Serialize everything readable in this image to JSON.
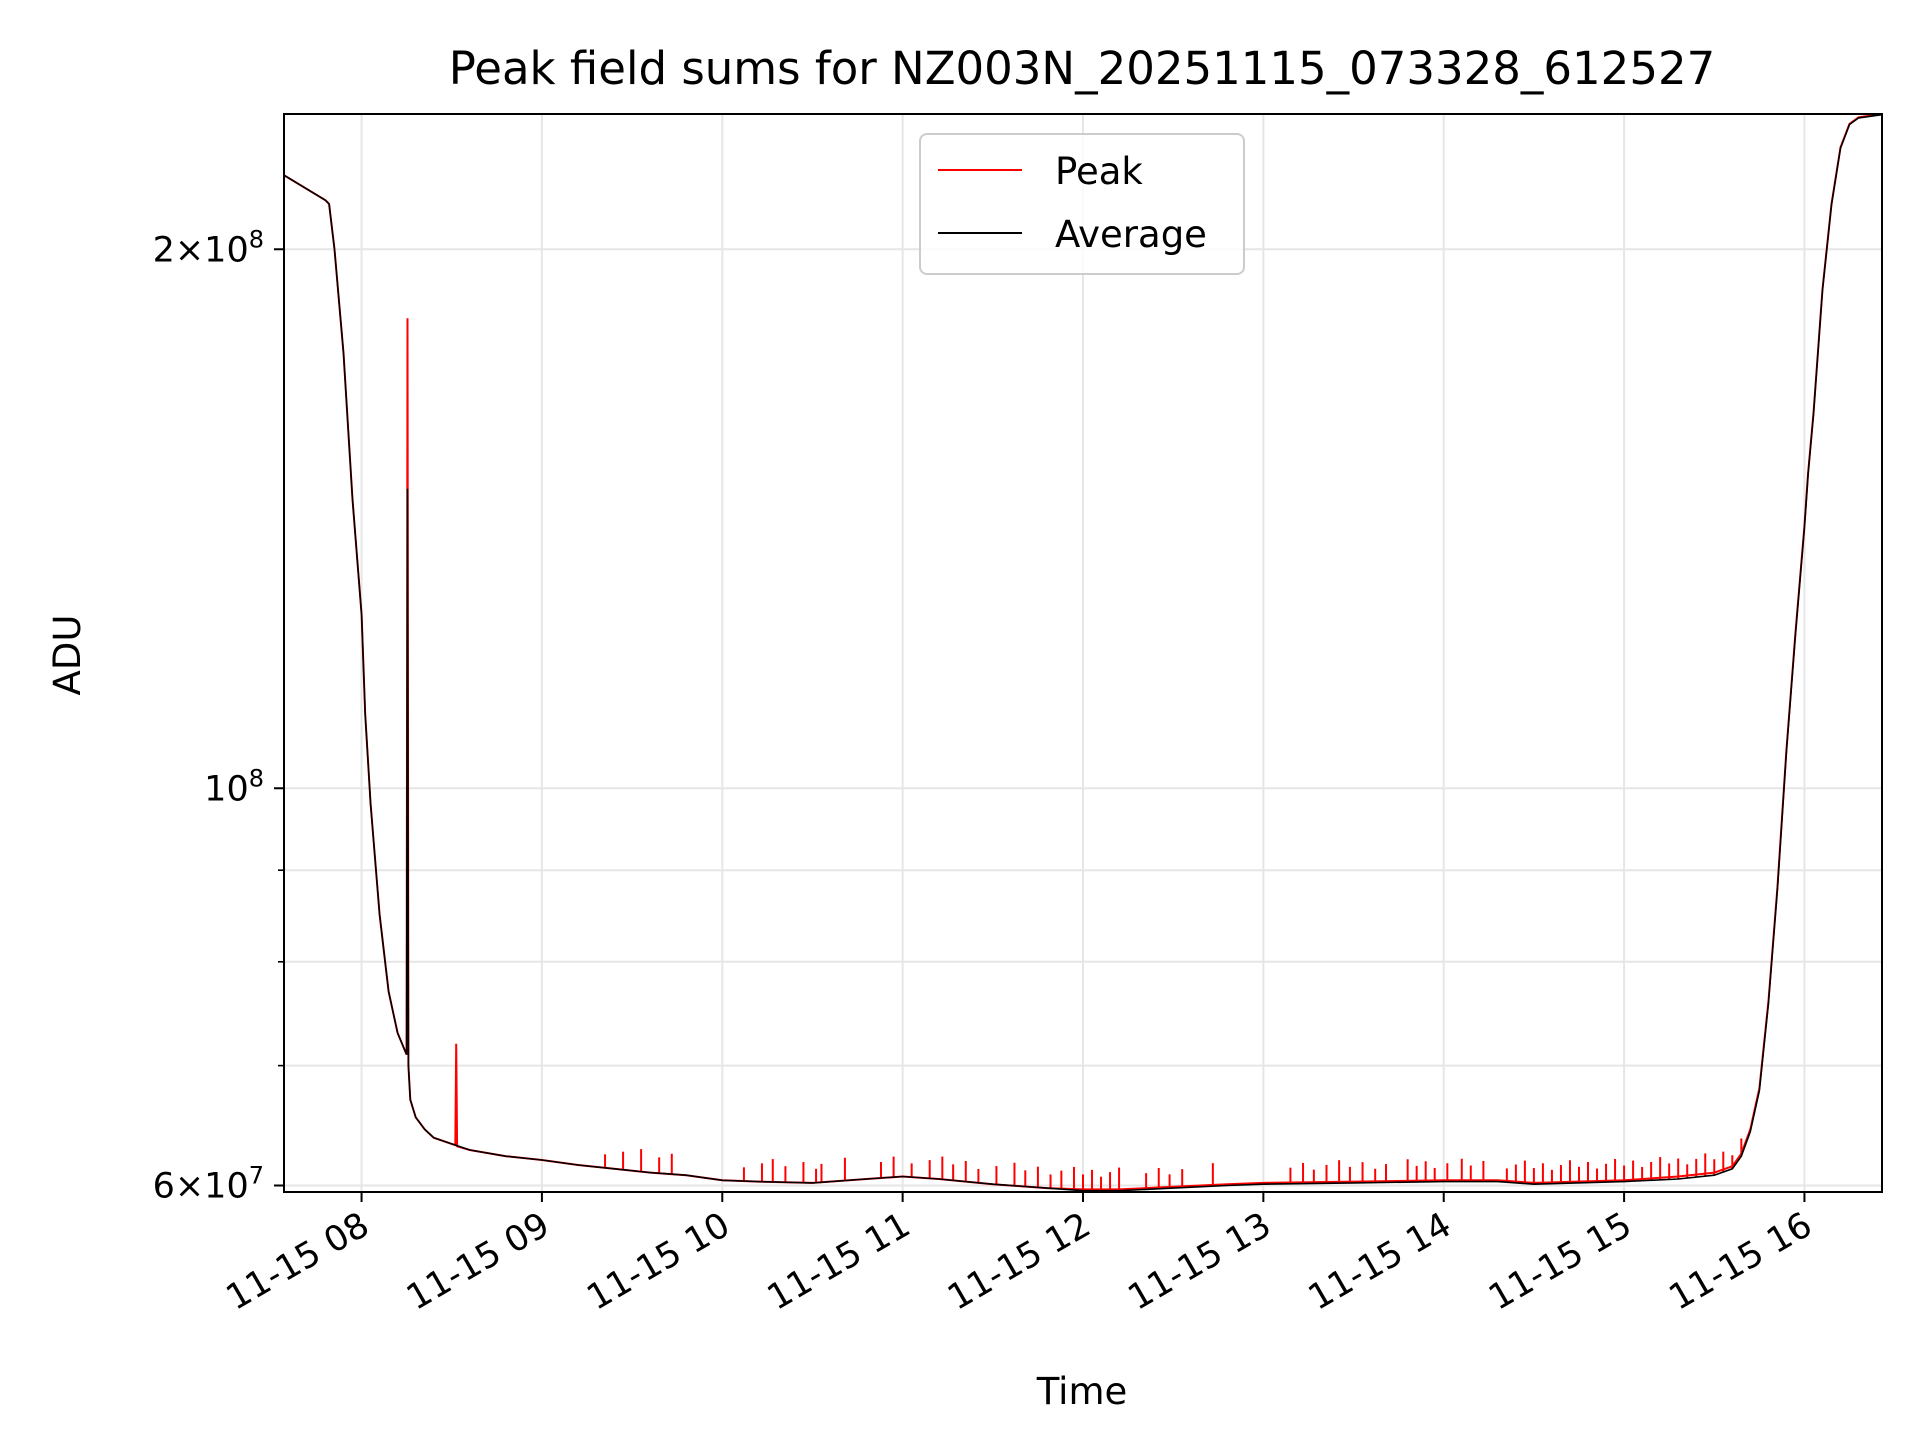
{
  "chart_data": {
    "type": "line",
    "title": "Peak field sums for NZ003N_20251115_073328_612527",
    "xlabel": "Time",
    "ylabel": "ADU",
    "yscale": "log",
    "grid": true,
    "legend_position": "top-center",
    "xlim": [
      7.57,
      16.43
    ],
    "ylim": [
      59500000,
      238000000
    ],
    "x_unit": "hours on 2025-11-15",
    "x_ticks": [
      8,
      9,
      10,
      11,
      12,
      13,
      14,
      15,
      16
    ],
    "x_tick_labels": [
      "11-15 08",
      "11-15 09",
      "11-15 10",
      "11-15 11",
      "11-15 12",
      "11-15 13",
      "11-15 14",
      "11-15 15",
      "11-15 16"
    ],
    "y_major_ticks": [
      60000000,
      100000000,
      200000000
    ],
    "y_major_tick_labels": [
      {
        "mantissa": "6",
        "exponent": "7"
      },
      {
        "mantissa": "",
        "exponent": "8"
      },
      {
        "mantissa": "2",
        "exponent": "8"
      }
    ],
    "y_minor_ticks": [
      70000000,
      80000000,
      90000000
    ],
    "series": [
      {
        "name": "Peak",
        "color": "#ff0000",
        "x": [
          7.57,
          7.8,
          7.82,
          7.85,
          7.9,
          7.95,
          8.0,
          8.02,
          8.05,
          8.1,
          8.15,
          8.2,
          8.25,
          8.255,
          8.26,
          8.27,
          8.3,
          8.35,
          8.4,
          8.5,
          8.52,
          8.525,
          8.53,
          8.6,
          8.8,
          9.0,
          9.2,
          9.4,
          9.6,
          9.8,
          10.0,
          10.2,
          10.5,
          10.8,
          11.0,
          11.2,
          11.5,
          11.8,
          12.0,
          12.2,
          12.5,
          12.8,
          13.0,
          13.5,
          14.0,
          14.3,
          14.5,
          15.0,
          15.3,
          15.5,
          15.6,
          15.65,
          15.7,
          15.75,
          15.8,
          15.85,
          15.9,
          15.95,
          16.0,
          16.02,
          16.05,
          16.1,
          16.15,
          16.2,
          16.25,
          16.3,
          16.43
        ],
        "y": [
          220000000,
          213000000,
          212000000,
          200000000,
          175000000,
          145000000,
          125000000,
          110000000,
          98000000,
          85000000,
          77000000,
          73000000,
          71000000,
          183000000,
          70000000,
          67000000,
          65500000,
          64500000,
          63800000,
          63300000,
          63200000,
          72000000,
          63100000,
          62800000,
          62300000,
          62000000,
          61600000,
          61300000,
          61000000,
          60800000,
          60400000,
          60300000,
          60200000,
          60500000,
          60700000,
          60500000,
          60100000,
          59800000,
          59700000,
          59700000,
          59900000,
          60100000,
          60200000,
          60300000,
          60400000,
          60400000,
          60200000,
          60400000,
          60700000,
          61000000,
          61500000,
          62500000,
          64500000,
          68000000,
          76000000,
          88000000,
          105000000,
          122000000,
          140000000,
          150000000,
          162000000,
          190000000,
          212000000,
          228000000,
          235000000,
          237000000,
          238000000
        ]
      },
      {
        "name": "Average",
        "color": "#000000",
        "x": [
          7.57,
          7.8,
          7.82,
          7.85,
          7.9,
          7.95,
          8.0,
          8.02,
          8.05,
          8.1,
          8.15,
          8.2,
          8.25,
          8.255,
          8.26,
          8.27,
          8.3,
          8.35,
          8.4,
          8.5,
          8.6,
          8.8,
          9.0,
          9.2,
          9.4,
          9.6,
          9.8,
          10.0,
          10.2,
          10.5,
          10.8,
          11.0,
          11.2,
          11.5,
          11.8,
          12.0,
          12.2,
          12.5,
          12.8,
          13.0,
          13.5,
          14.0,
          14.3,
          14.5,
          15.0,
          15.3,
          15.5,
          15.6,
          15.65,
          15.7,
          15.75,
          15.8,
          15.85,
          15.9,
          15.95,
          16.0,
          16.02,
          16.05,
          16.1,
          16.15,
          16.2,
          16.25,
          16.3,
          16.43
        ],
        "y": [
          220000000,
          213000000,
          212000000,
          200000000,
          175000000,
          145000000,
          125000000,
          110000000,
          98000000,
          85000000,
          77000000,
          73000000,
          71000000,
          147000000,
          70000000,
          67000000,
          65500000,
          64500000,
          63800000,
          63300000,
          62800000,
          62300000,
          62000000,
          61600000,
          61300000,
          61000000,
          60800000,
          60400000,
          60300000,
          60200000,
          60500000,
          60700000,
          60500000,
          60100000,
          59800000,
          59600000,
          59600000,
          59800000,
          60000000,
          60100000,
          60200000,
          60300000,
          60300000,
          60100000,
          60300000,
          60500000,
          60800000,
          61300000,
          62300000,
          64300000,
          67800000,
          75800000,
          87800000,
          104800000,
          121800000,
          139800000,
          149800000,
          161800000,
          189800000,
          211800000,
          227800000,
          234800000,
          236800000,
          237800000
        ]
      }
    ],
    "peak_spike_times": [
      9.35,
      9.45,
      9.55,
      9.65,
      9.72,
      10.12,
      10.22,
      10.28,
      10.35,
      10.45,
      10.52,
      10.55,
      10.68,
      10.88,
      10.95,
      11.05,
      11.15,
      11.22,
      11.28,
      11.35,
      11.42,
      11.52,
      11.62,
      11.68,
      11.75,
      11.82,
      11.88,
      11.95,
      12.0,
      12.05,
      12.1,
      12.15,
      12.2,
      12.35,
      12.42,
      12.48,
      12.55,
      12.72,
      13.15,
      13.22,
      13.28,
      13.35,
      13.42,
      13.48,
      13.55,
      13.62,
      13.68,
      13.8,
      13.85,
      13.9,
      13.95,
      14.02,
      14.1,
      14.15,
      14.22,
      14.35,
      14.4,
      14.45,
      14.5,
      14.55,
      14.6,
      14.65,
      14.7,
      14.75,
      14.8,
      14.85,
      14.9,
      14.95,
      15.0,
      15.05,
      15.1,
      15.15,
      15.2,
      15.25,
      15.3,
      15.35,
      15.4,
      15.45,
      15.5,
      15.55,
      15.6,
      15.65
    ],
    "peak_spike_height": 1800000
  }
}
